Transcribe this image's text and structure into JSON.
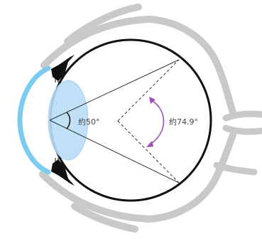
{
  "labels": {
    "nodal_angle": "約50°",
    "retinal_angle": "約74.9°"
  },
  "colors": {
    "bone_gray": "#c9c9c9",
    "outline_black": "#111111",
    "cornea_blue": "#7ccbf0",
    "lens_blue": "#b9ddf6",
    "lens_edge": "#9fcdef",
    "arc_purple": "#a24fb5",
    "ray_dark": "#333333",
    "label_text": "#444444"
  }
}
